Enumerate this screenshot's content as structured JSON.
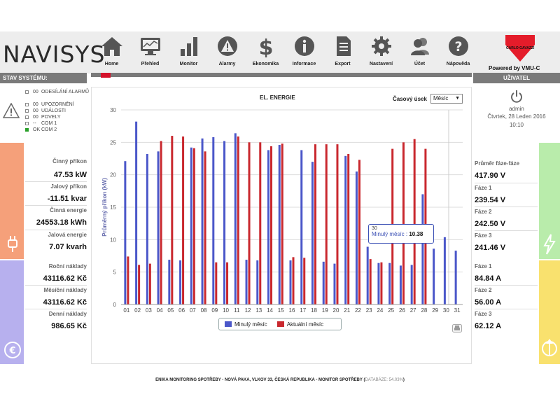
{
  "logo": {
    "text": "NAVISYS"
  },
  "nav": [
    {
      "label": "Home",
      "icon": "home-icon"
    },
    {
      "label": "Přehled",
      "icon": "monitor-screen-icon"
    },
    {
      "label": "Monitor",
      "icon": "bar-chart-icon"
    },
    {
      "label": "Alarmy",
      "icon": "warning-icon"
    },
    {
      "label": "Ekonomika",
      "icon": "dollar-icon"
    },
    {
      "label": "Informace",
      "icon": "info-icon"
    },
    {
      "label": "Export",
      "icon": "document-icon"
    },
    {
      "label": "Nastavení",
      "icon": "gear-icon"
    },
    {
      "label": "Účet",
      "icon": "users-icon"
    },
    {
      "label": "Nápověda",
      "icon": "help-icon"
    }
  ],
  "brand": {
    "name": "CARLO GAVAZZI",
    "powered": "Powered by  VMU-C"
  },
  "status": {
    "title": "STAV SYSTÉMU:",
    "rows": [
      {
        "code": "00",
        "label": "ODESÍLÁNÍ ALARMŮ",
        "on": false
      },
      {
        "code": "00",
        "label": "UPOZORNĚNÍ",
        "on": false
      },
      {
        "code": "00",
        "label": "UDÁLOSTI",
        "on": false
      },
      {
        "code": "00",
        "label": "POVELY",
        "on": false
      },
      {
        "code": "--",
        "label": "COM 1",
        "on": false
      },
      {
        "code": "OK",
        "label": "COM 2",
        "on": true
      }
    ]
  },
  "left_metrics": {
    "power": [
      {
        "label": "Činný příkon",
        "value": "47.53 kW"
      },
      {
        "label": "Jalový příkon",
        "value": "-11.51 kvar"
      },
      {
        "label": "Činná energie",
        "value": "24553.18 kWh"
      },
      {
        "label": "Jalová energie",
        "value": "7.07 kvarh"
      }
    ],
    "cost": [
      {
        "label": "Roční náklady",
        "value": "43116.62 Kč"
      },
      {
        "label": "Měsíční náklady",
        "value": "43116.62 Kč"
      },
      {
        "label": "Denní náklady",
        "value": "986.65 Kč"
      }
    ]
  },
  "user": {
    "title": "UŽIVATEL",
    "name": "admin",
    "date": "Čtvrtek, 28 Leden 2016",
    "time": "10:10"
  },
  "right_metrics": {
    "voltage": [
      {
        "label": "Průměr fáze-fáze",
        "value": "417.90 V"
      },
      {
        "label": "Fáze 1",
        "value": "239.54 V"
      },
      {
        "label": "Fáze 2",
        "value": "242.50 V"
      },
      {
        "label": "Fáze 3",
        "value": "241.46 V"
      }
    ],
    "current": [
      {
        "label": "Fáze 1",
        "value": "84.84 A"
      },
      {
        "label": "Fáze 2",
        "value": "56.00 A"
      },
      {
        "label": "Fáze 3",
        "value": "62.12 A"
      }
    ]
  },
  "chart_header": {
    "title": "EL. ENERGIE",
    "period_label": "Časový úsek",
    "period_value": "Měsíc"
  },
  "tooltip": {
    "x": "30",
    "series": "Minulý měsíc",
    "value": "10.38"
  },
  "chart_data": {
    "type": "bar",
    "title": "EL. ENERGIE",
    "ylabel": "Průměrný příkon (kW)",
    "xlabel": "",
    "ylim": [
      0,
      30
    ],
    "yticks": [
      0,
      5,
      10,
      15,
      20,
      25,
      30
    ],
    "grid": true,
    "legend": "bottom-center",
    "categories": [
      "01",
      "02",
      "03",
      "04",
      "05",
      "06",
      "07",
      "08",
      "09",
      "10",
      "11",
      "12",
      "13",
      "14",
      "15",
      "16",
      "17",
      "18",
      "19",
      "20",
      "21",
      "22",
      "23",
      "24",
      "25",
      "26",
      "27",
      "28",
      "29",
      "30",
      "31"
    ],
    "series": [
      {
        "name": "Minulý měsíc",
        "color": "#4b57c9",
        "values": [
          22.1,
          28.2,
          23.2,
          23.6,
          6.9,
          6.8,
          24.2,
          25.6,
          25.8,
          25.2,
          26.4,
          6.9,
          6.8,
          23.8,
          24.6,
          6.8,
          23.8,
          22.0,
          6.6,
          6.3,
          22.9,
          20.5,
          8.9,
          6.4,
          6.4,
          6.0,
          6.1,
          17.0,
          8.6,
          10.38,
          8.3
        ]
      },
      {
        "name": "Aktuální měsíc",
        "color": "#c9282e",
        "values": [
          7.4,
          6.1,
          6.3,
          25.2,
          26.0,
          25.9,
          24.1,
          23.6,
          6.5,
          6.5,
          25.9,
          25.0,
          25.0,
          24.4,
          24.8,
          7.3,
          7.2,
          24.7,
          24.7,
          24.7,
          23.2,
          22.3,
          7.0,
          6.5,
          24.0,
          25.0,
          25.5,
          24.0,
          null,
          null,
          null
        ]
      }
    ]
  },
  "footer": {
    "text": "ENIKA MONITORING SPOTŘEBY - NOVÁ PAKA, VLKOV 33, ČESKÁ REPUBLIKA - MONITOR SPOTŘEBY (",
    "db": "DATABÁZE: 54.03%",
    "close": ")"
  }
}
